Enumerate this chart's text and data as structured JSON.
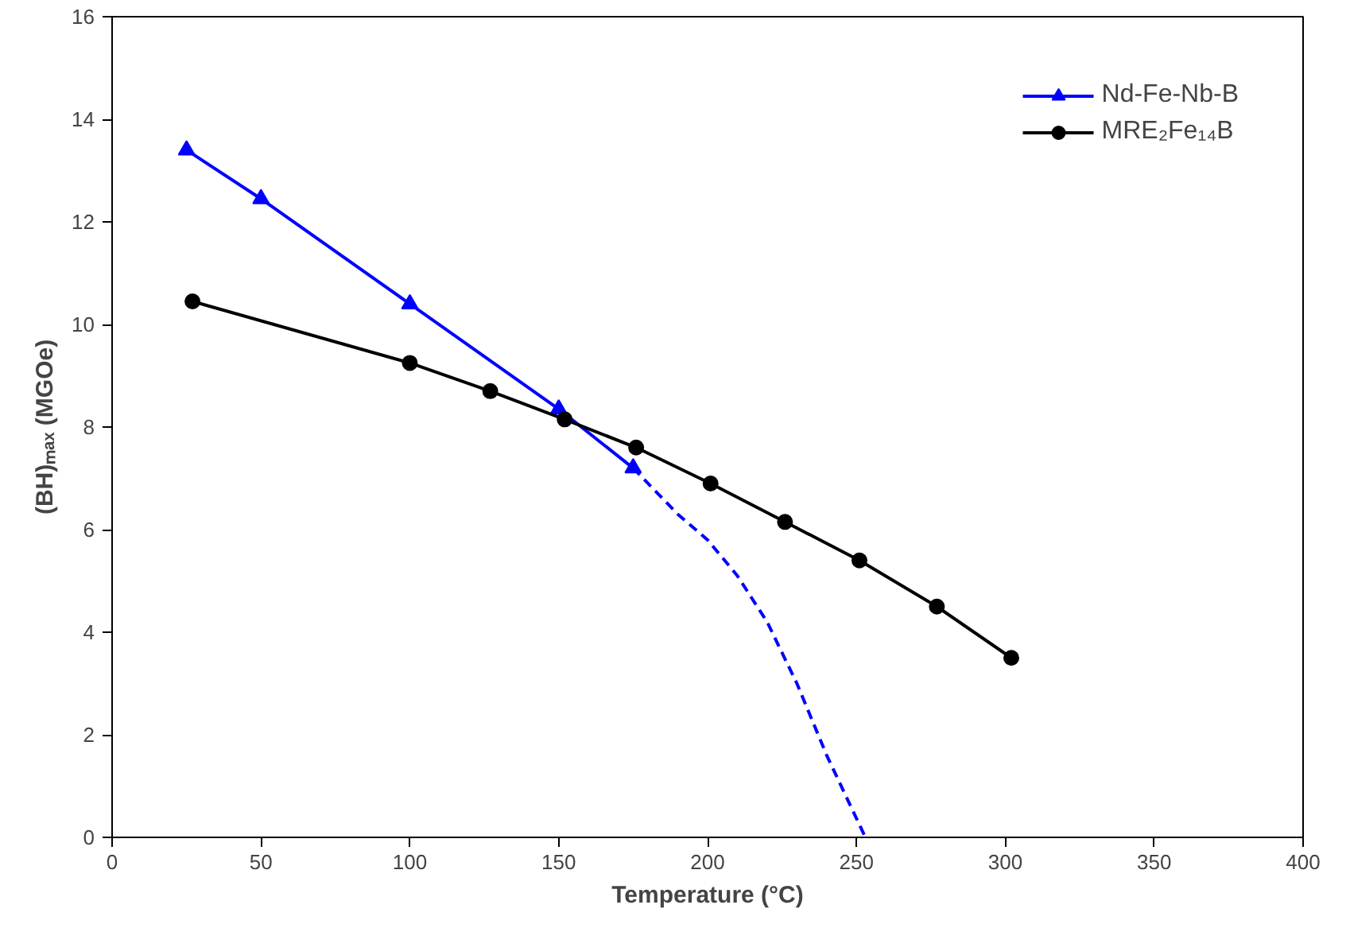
{
  "chart_data": {
    "type": "line",
    "xlabel": "Temperature (°C)",
    "ylabel": "(BH)ₘₐₓ (MGOe)",
    "xlim": [
      0,
      400
    ],
    "xticks": [
      0,
      50,
      100,
      150,
      200,
      250,
      300,
      350,
      400
    ],
    "ylim": [
      0,
      16
    ],
    "yticks": [
      0,
      2,
      4,
      6,
      8,
      10,
      12,
      14,
      16
    ],
    "grid": false,
    "legend": "top right",
    "series": [
      {
        "name": "Nd-Fe-Nb-B",
        "color": "#0000ff",
        "marker": "triangle",
        "x": [
          25,
          50,
          100,
          150,
          175
        ],
        "values": [
          13.4,
          12.45,
          10.4,
          8.35,
          7.2
        ]
      },
      {
        "name": "MRE₂Fe₁₄B",
        "color": "#000000",
        "marker": "circle",
        "x": [
          27,
          100,
          127,
          152,
          176,
          201,
          226,
          251,
          277,
          302
        ],
        "values": [
          10.45,
          9.25,
          8.7,
          8.15,
          7.6,
          6.9,
          6.15,
          5.4,
          4.5,
          3.5
        ]
      },
      {
        "color": "#0000ff",
        "marker": "none",
        "line_style": "dashed",
        "x": [
          175,
          190,
          200,
          210,
          220,
          230,
          240,
          253
        ],
        "values": [
          7.2,
          6.3,
          5.8,
          5.1,
          4.2,
          3.0,
          1.6,
          0
        ]
      }
    ]
  }
}
